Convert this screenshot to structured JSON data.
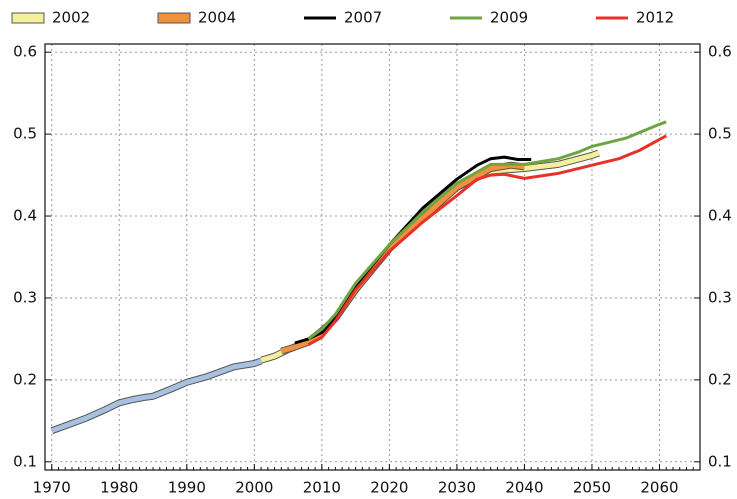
{
  "chart_data": {
    "type": "line",
    "xlim": [
      1969,
      2066
    ],
    "xticks": [
      1970,
      1980,
      1990,
      2000,
      2010,
      2020,
      2030,
      2040,
      2050,
      2060
    ],
    "ylim": [
      0.09,
      0.61
    ],
    "yticks": [
      0.1,
      0.2,
      0.3,
      0.4,
      0.5,
      0.6
    ],
    "y2lim": [
      0.09,
      0.61
    ],
    "y2ticks": [
      0.1,
      0.2,
      0.3,
      0.4,
      0.5,
      0.6
    ],
    "grid": true,
    "legend": "top",
    "series": [
      {
        "color": "#a9c1e0",
        "style": "band",
        "x": [
          1970,
          1972,
          1975,
          1978,
          1980,
          1982,
          1984,
          1985,
          1988,
          1990,
          1993,
          1995,
          1997,
          2000,
          2001
        ],
        "values": [
          0.138,
          0.144,
          0.153,
          0.164,
          0.172,
          0.176,
          0.179,
          0.18,
          0.19,
          0.197,
          0.204,
          0.21,
          0.216,
          0.22,
          0.223
        ]
      },
      {
        "name": "2002",
        "color": "#f3ef9b",
        "style": "band",
        "x": [
          2001,
          2003,
          2005,
          2008,
          2010,
          2012,
          2015,
          2020,
          2025,
          2030,
          2035,
          2040,
          2045,
          2050,
          2051
        ],
        "values": [
          0.224,
          0.229,
          0.237,
          0.247,
          0.26,
          0.275,
          0.31,
          0.36,
          0.4,
          0.435,
          0.455,
          0.458,
          0.463,
          0.474,
          0.477
        ]
      },
      {
        "name": "2004",
        "color": "#f0913f",
        "style": "band",
        "x": [
          2004,
          2006,
          2008,
          2010,
          2012,
          2015,
          2020,
          2025,
          2030,
          2035,
          2038,
          2040
        ],
        "values": [
          0.235,
          0.24,
          0.246,
          0.258,
          0.275,
          0.31,
          0.36,
          0.398,
          0.435,
          0.458,
          0.462,
          0.46
        ]
      },
      {
        "name": "2007",
        "color": "#000000",
        "style": "line",
        "x": [
          2006,
          2008,
          2010,
          2012,
          2015,
          2020,
          2025,
          2030,
          2033,
          2035,
          2037,
          2039,
          2041
        ],
        "values": [
          0.245,
          0.25,
          0.258,
          0.275,
          0.315,
          0.365,
          0.41,
          0.445,
          0.462,
          0.47,
          0.472,
          0.469,
          0.469
        ]
      },
      {
        "name": "2009",
        "color": "#6ea540",
        "style": "line",
        "x": [
          2008,
          2010,
          2012,
          2015,
          2020,
          2025,
          2030,
          2035,
          2040,
          2045,
          2048,
          2050,
          2055,
          2060,
          2061
        ],
        "values": [
          0.25,
          0.262,
          0.28,
          0.318,
          0.365,
          0.405,
          0.44,
          0.463,
          0.463,
          0.47,
          0.478,
          0.485,
          0.495,
          0.512,
          0.515
        ]
      },
      {
        "name": "2012",
        "color": "#e8312a",
        "style": "line",
        "x": [
          2008,
          2010,
          2012,
          2015,
          2020,
          2025,
          2030,
          2033,
          2035,
          2037,
          2040,
          2045,
          2050,
          2054,
          2057,
          2061
        ],
        "values": [
          0.243,
          0.252,
          0.272,
          0.31,
          0.357,
          0.393,
          0.425,
          0.445,
          0.45,
          0.451,
          0.446,
          0.452,
          0.462,
          0.47,
          0.48,
          0.498
        ]
      }
    ]
  }
}
